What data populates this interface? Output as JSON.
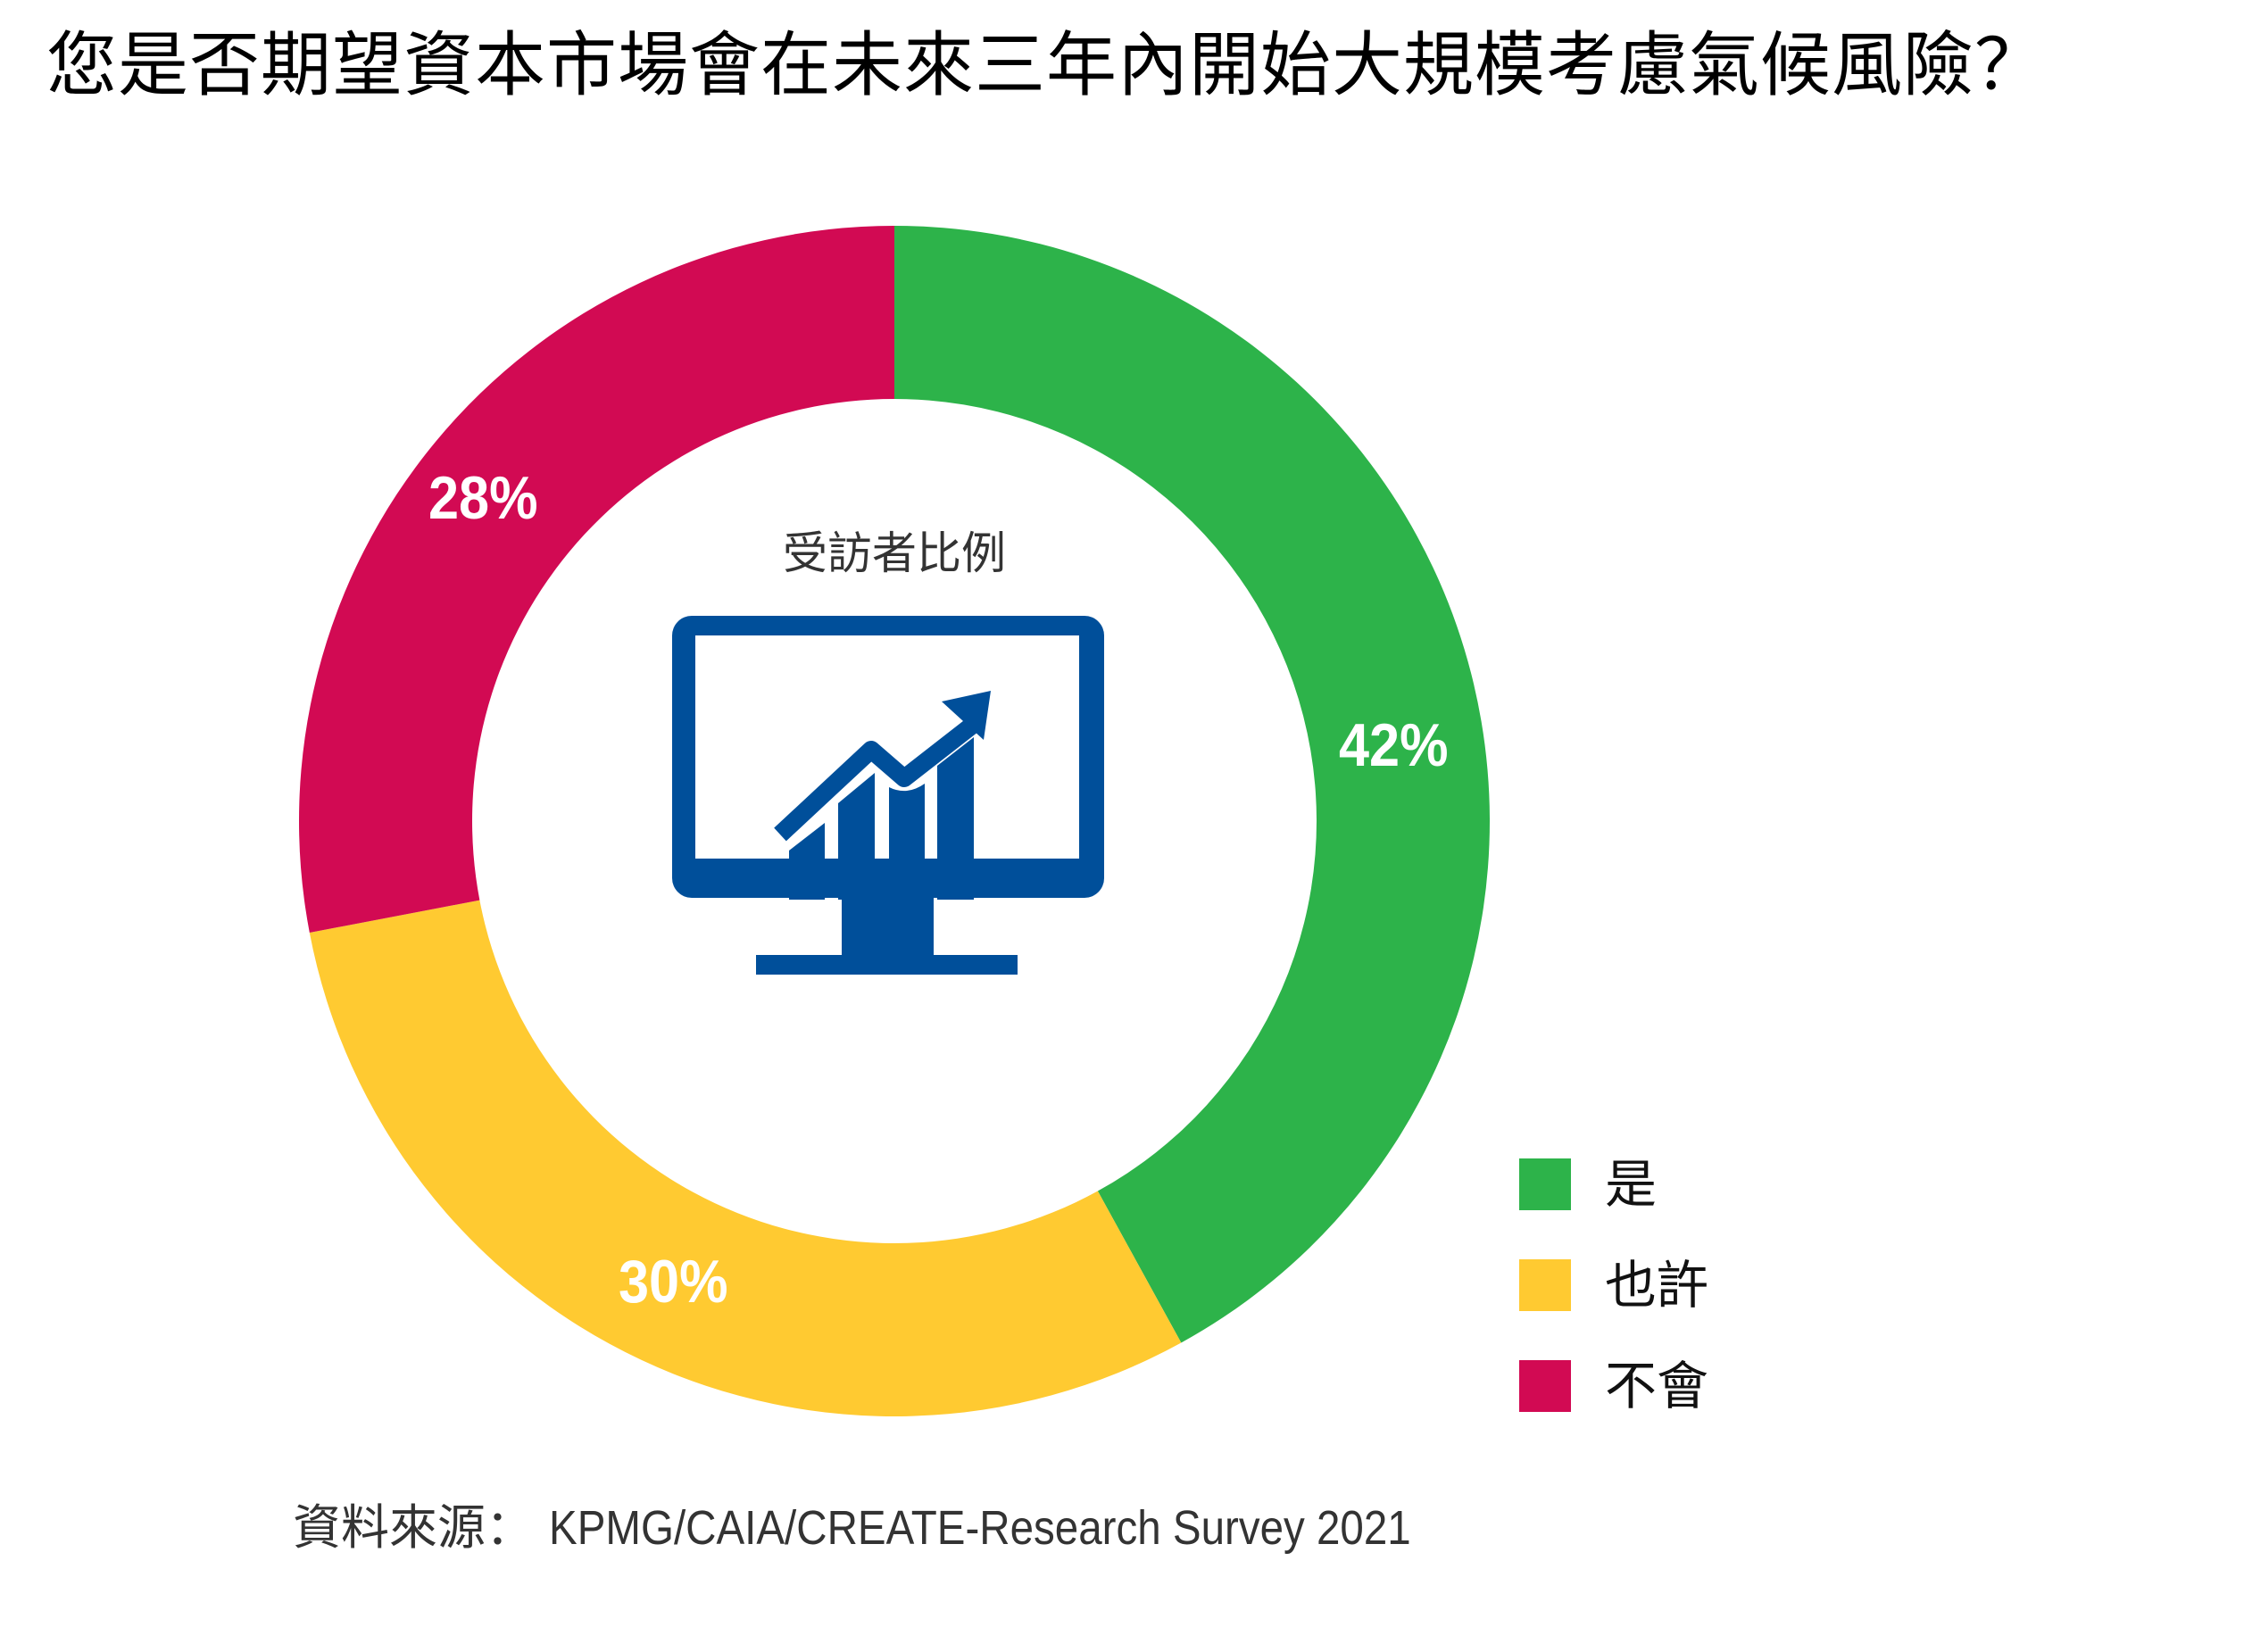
{
  "title": "您是否期望資本市場會在未來三年內開始大規模考慮氣候風險？",
  "center": {
    "label": "受訪者比例",
    "icon": "monitor-chart-icon",
    "icon_color": "#004f9a"
  },
  "segments": [
    {
      "name": "是",
      "value": 42,
      "label": "42%",
      "color": "#2db34a"
    },
    {
      "name": "也許",
      "value": 30,
      "label": "30%",
      "color": "#ffca31"
    },
    {
      "name": "不會",
      "value": 28,
      "label": "28%",
      "color": "#d20a53"
    }
  ],
  "legend": [
    {
      "label": "是",
      "color": "#2db34a"
    },
    {
      "label": "也許",
      "color": "#ffca31"
    },
    {
      "label": "不會",
      "color": "#d20a53"
    }
  ],
  "source": {
    "prefix": "資料來源：",
    "text": "KPMG/CAIA/CREATE-Research Survey 2021"
  },
  "chart_data": {
    "type": "pie",
    "variant": "donut",
    "title": "您是否期望資本市場會在未來三年內開始大規模考慮氣候風險？",
    "center_label": "受訪者比例",
    "categories": [
      "是",
      "也許",
      "不會"
    ],
    "values": [
      42,
      30,
      28
    ],
    "unit": "%",
    "colors": [
      "#2db34a",
      "#ffca31",
      "#d20a53"
    ],
    "legend_position": "bottom-right",
    "start_angle": "12 o'clock, clockwise",
    "source": "資料來源： KPMG/CAIA/CREATE-Research Survey 2021"
  }
}
